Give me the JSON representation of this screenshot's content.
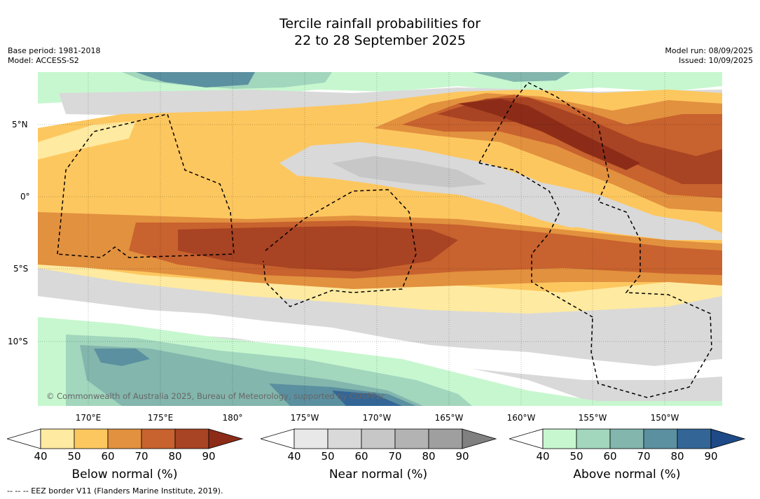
{
  "title_line1": "Tercile rainfall probabilities for",
  "title_line2": "22 to 28 September 2025",
  "base_period": "Base period: 1981-2018",
  "model": "Model: ACCESS-S2",
  "model_run": "Model run: 08/09/2025",
  "issued": "Issued: 10/09/2025",
  "credit": "© Commonwealth of Australia 2025, Bureau of Meteorology, supported by COSPPac",
  "footer": "--  --  -- EEZ border V11 (Flanders Marine Institute, 2019).",
  "lon_labels": [
    "170°E",
    "175°E",
    "180°",
    "175°W",
    "170°W",
    "165°W",
    "160°W",
    "155°W",
    "150°W"
  ],
  "lat_labels": [
    "5°N",
    "0°",
    "5°S",
    "10°S"
  ],
  "legends": [
    {
      "label": "Below normal (%)",
      "ticks": [
        "40",
        "50",
        "60",
        "70",
        "80",
        "90"
      ],
      "colors": [
        "#ffffff",
        "#feeaa0",
        "#fdc75f",
        "#e2913f",
        "#c8622e",
        "#a84323",
        "#8c2c18"
      ]
    },
    {
      "label": "Near normal (%)",
      "ticks": [
        "40",
        "50",
        "60",
        "70",
        "80",
        "90"
      ],
      "colors": [
        "#ffffff",
        "#e8e8e8",
        "#d9d9d9",
        "#c7c7c7",
        "#b3b3b3",
        "#9f9f9f",
        "#808080"
      ]
    },
    {
      "label": "Above normal (%)",
      "ticks": [
        "40",
        "50",
        "60",
        "70",
        "80",
        "90"
      ],
      "colors": [
        "#ffffff",
        "#c7f7cf",
        "#a2d6bd",
        "#83b6ad",
        "#5b90a0",
        "#336697",
        "#1e4a88"
      ]
    }
  ],
  "map_colors": {
    "below": [
      "#feeaa0",
      "#fdc75f",
      "#e2913f",
      "#c8622e",
      "#a84323",
      "#8c2c18"
    ],
    "near": [
      "#e8e8e8",
      "#d9d9d9",
      "#c7c7c7"
    ],
    "above": [
      "#c7f7cf",
      "#a2d6bd",
      "#83b6ad",
      "#5b90a0",
      "#336697"
    ]
  }
}
